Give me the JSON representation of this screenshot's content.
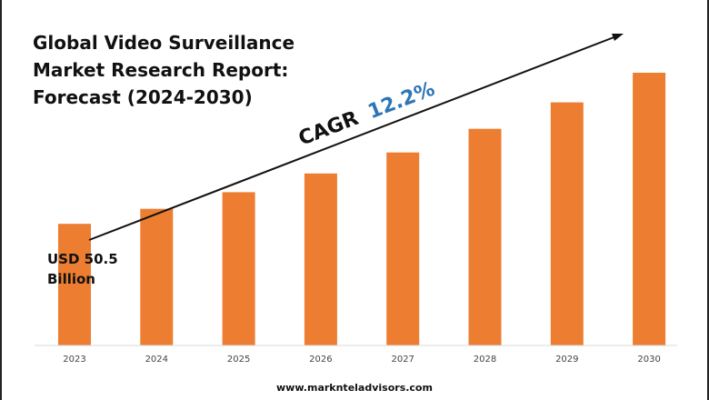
{
  "chart_data": {
    "type": "bar",
    "title_lines": [
      "Global Video Surveillance",
      "Market Research Report:",
      "Forecast (2024-2030)"
    ],
    "categories": [
      "2023",
      "2024",
      "2025",
      "2026",
      "2027",
      "2028",
      "2029",
      "2030"
    ],
    "values": [
      50.5,
      56.7,
      63.6,
      71.4,
      80.1,
      89.9,
      100.9,
      113.2
    ],
    "start_label_lines": [
      "USD 50.5",
      "Billion"
    ],
    "cagr_label": "CAGR",
    "cagr_value": "12.2%",
    "grid": false,
    "legend": "none",
    "colors": {
      "bar": "#ED7D31",
      "cagr_value": "#2E75B6",
      "text": "#111111"
    }
  },
  "footer": {
    "website": "www.marknteladvisors.com"
  }
}
